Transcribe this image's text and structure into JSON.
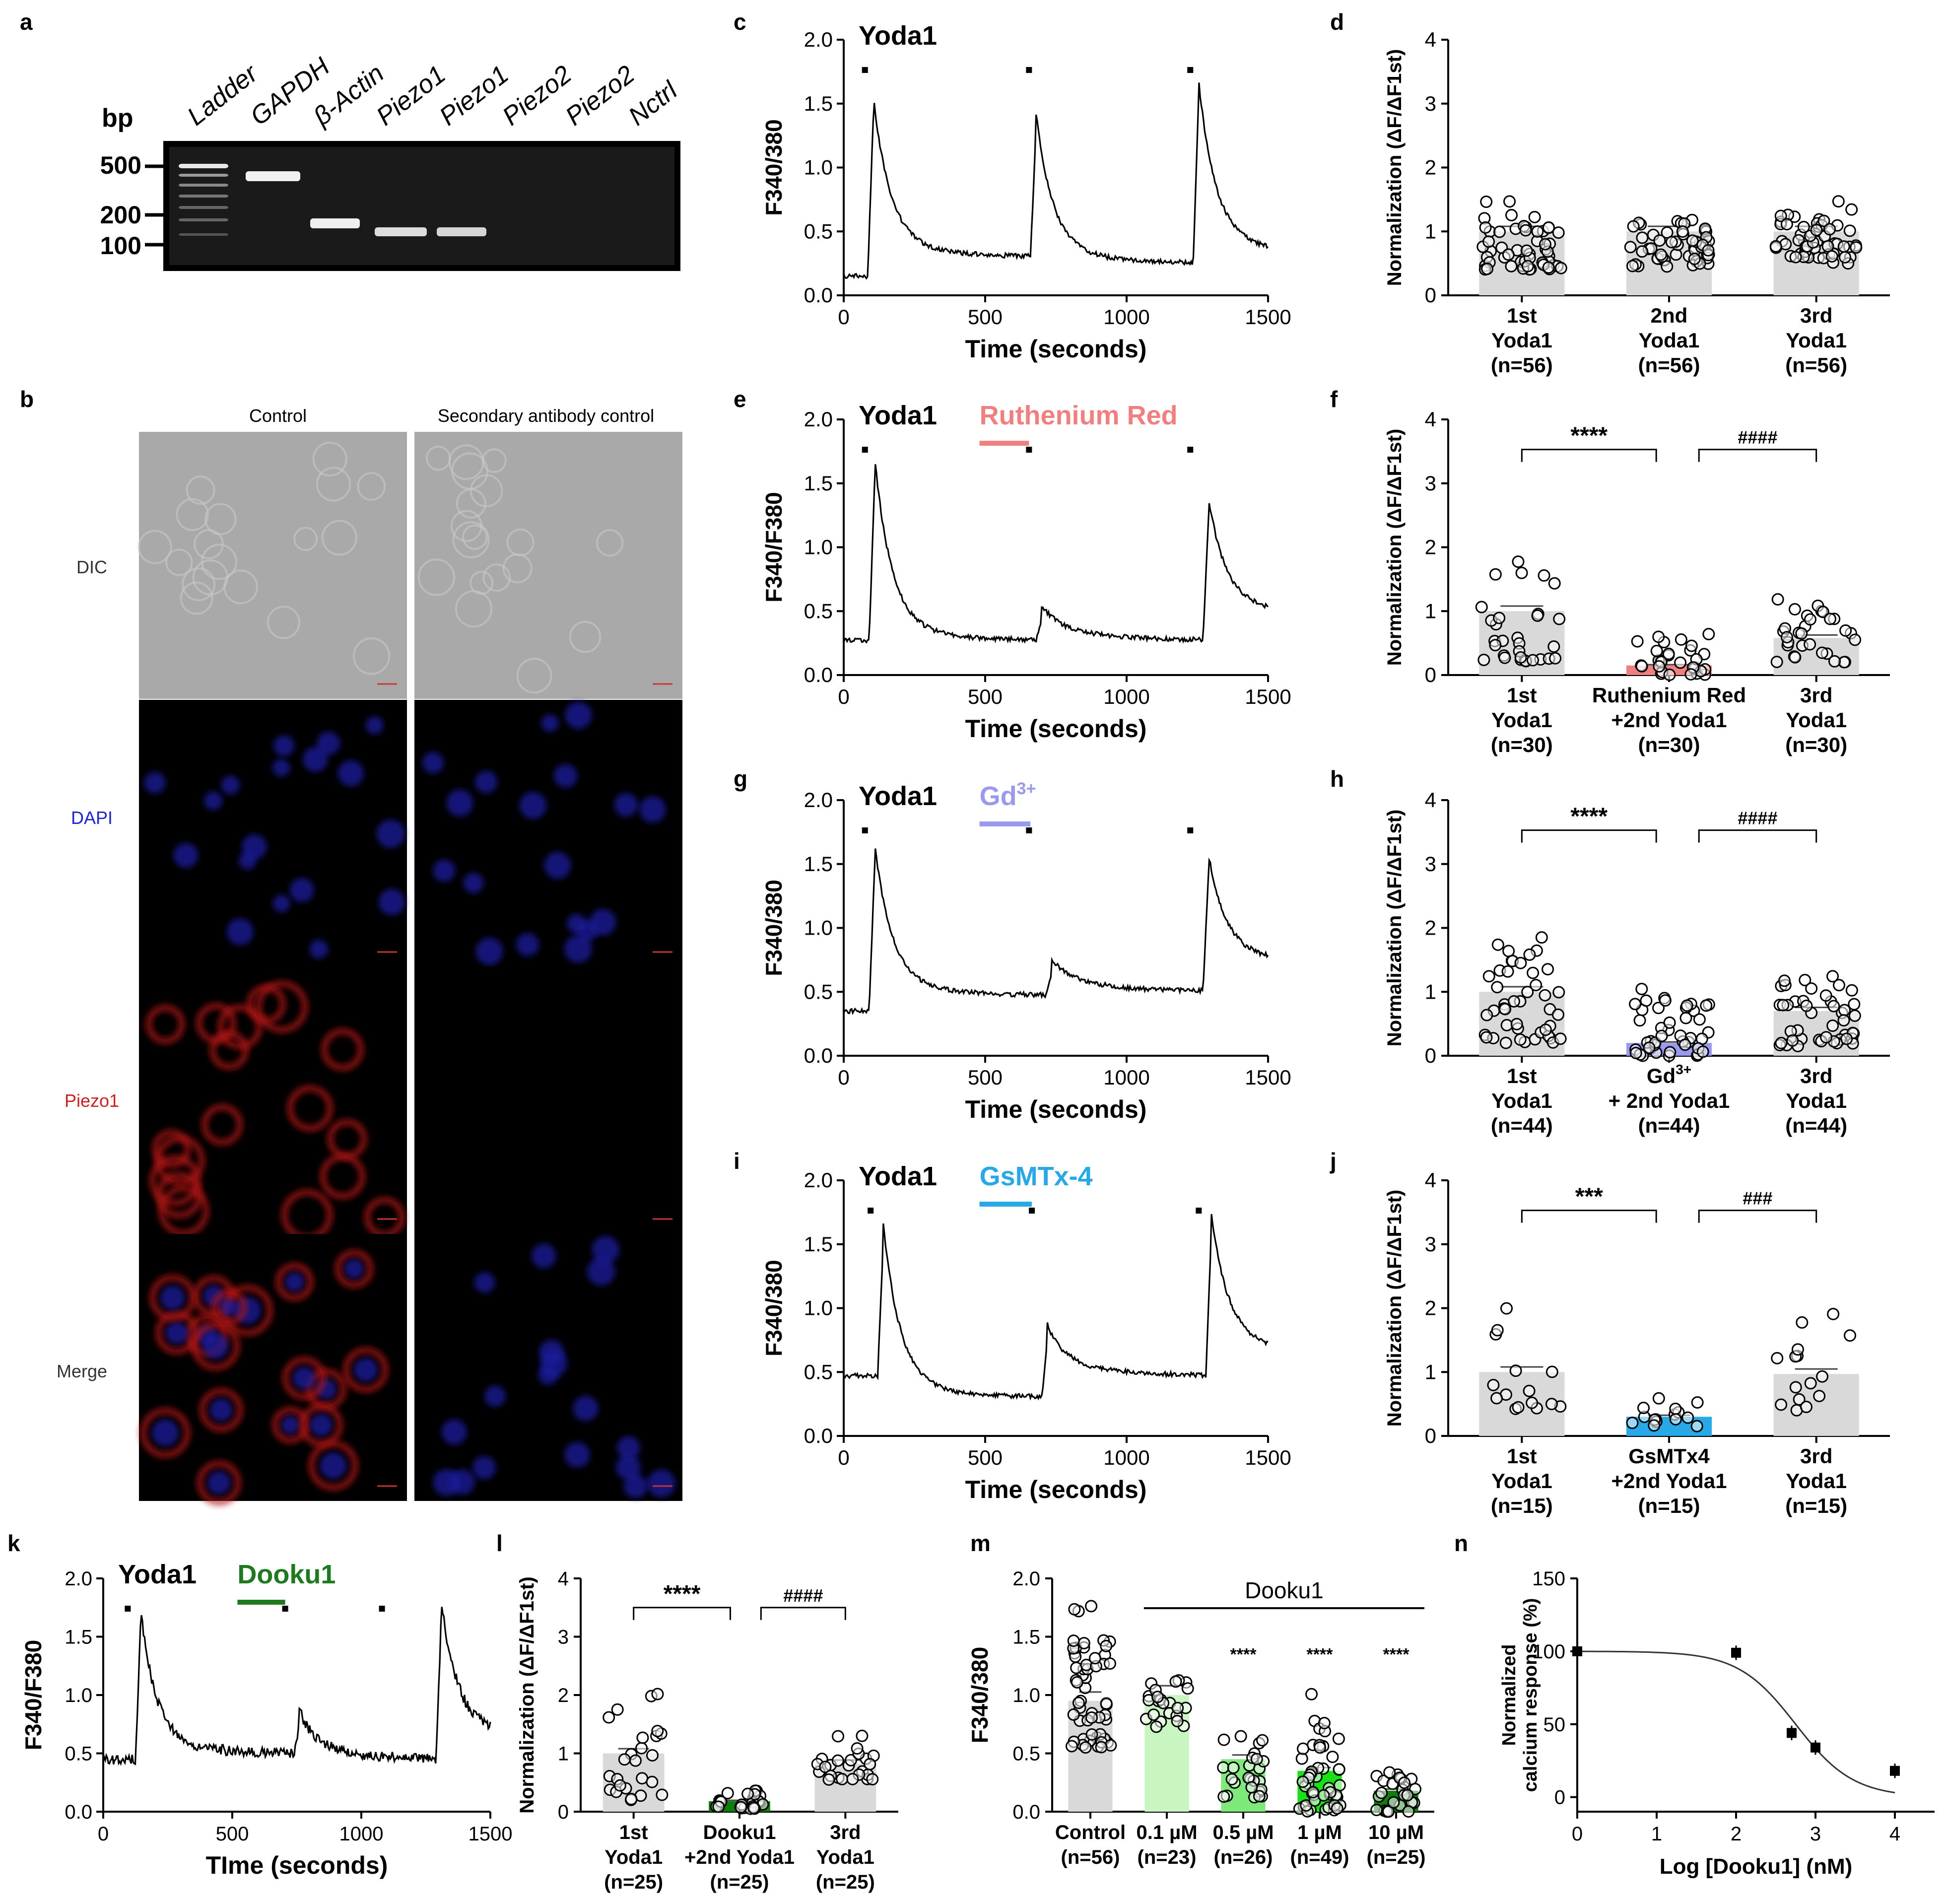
{
  "panel_letters": [
    "a",
    "b",
    "c",
    "d",
    "e",
    "f",
    "g",
    "h",
    "i",
    "j",
    "k",
    "l",
    "m",
    "n"
  ],
  "colors": {
    "ruthenium": "#f08080",
    "gd": "#9999ee",
    "gsmtx": "#29a8e8",
    "dooku": "#1f7a1f",
    "control_bar": "#d9d9d9",
    "light_green": "#c9f5c0",
    "mid_green": "#7fe87a",
    "bright_green": "#19e019",
    "dark_green": "#0e7d0e",
    "dapi": "#2222cc",
    "piezo": "#cc2020"
  },
  "gel": {
    "bp_label": "bp",
    "ladder_marks": [
      "500",
      "200",
      "100"
    ],
    "lanes": [
      "Ladder",
      "GAPDH",
      "β-Actin",
      "Piezo1",
      "Piezo1",
      "Piezo2",
      "Piezo2",
      "Nctrl"
    ]
  },
  "microscopy": {
    "columns": [
      "Control",
      "Secondary antibody control"
    ],
    "rows": [
      "DIC",
      "DAPI",
      "Piezo1",
      "Merge"
    ]
  },
  "chart_data": [
    {
      "id": "c",
      "type": "line",
      "title": "Yoda1",
      "ylabel": "F340/380",
      "xlabel": "Time (seconds)",
      "xlim": [
        0,
        1500
      ],
      "ylim": [
        0,
        2
      ],
      "xticks": [
        "0",
        "500",
        "1000",
        "1500"
      ],
      "yticks": [
        "0.0",
        "0.5",
        "1.0",
        "1.5",
        "2.0"
      ],
      "drug": null,
      "yoda_marks": [
        75,
        655,
        1225
      ],
      "baseline": 0.15,
      "peaks": [
        {
          "t": 105,
          "h": 1.43,
          "tail": 0.3
        },
        {
          "t": 680,
          "h": 1.3,
          "tail": 0.25
        },
        {
          "t": 1255,
          "h": 1.55,
          "tail": 0.33
        }
      ],
      "end": 0.3
    },
    {
      "id": "d",
      "type": "bar",
      "ylabel": "Normalization (ΔF/ΔF1st)",
      "ylim": [
        0,
        4
      ],
      "yticks": [
        "0",
        "1",
        "2",
        "3",
        "4"
      ],
      "categories": [
        [
          "1st",
          "Yoda1",
          "(n=56)"
        ],
        [
          "2nd",
          "Yoda1",
          "(n=56)"
        ],
        [
          "3rd",
          "Yoda1",
          "(n=56)"
        ]
      ],
      "values": [
        1.0,
        1.0,
        1.0
      ],
      "n": [
        56,
        56,
        56
      ],
      "spread": [
        [
          0.4,
          1.55
        ],
        [
          0.45,
          1.45
        ],
        [
          0.5,
          1.5
        ]
      ],
      "bar_colors": [
        "#d9d9d9",
        "#d9d9d9",
        "#d9d9d9"
      ],
      "sig": []
    },
    {
      "id": "e",
      "type": "line",
      "title": "Yoda1",
      "drug": "Ruthenium Red",
      "drug_color": "#f08080",
      "ylabel": "F340/F380",
      "xlabel": "Time (seconds)",
      "xlim": [
        0,
        1500
      ],
      "ylim": [
        0,
        2
      ],
      "xticks": [
        "0",
        "500",
        "1000",
        "1500"
      ],
      "yticks": [
        "0.0",
        "0.5",
        "1.0",
        "1.5",
        "2.0"
      ],
      "yoda_marks": [
        75,
        655,
        1225
      ],
      "drug_range": [
        480,
        655
      ],
      "baseline": 0.27,
      "peaks": [
        {
          "t": 110,
          "h": 1.57,
          "tail": 0.27
        },
        {
          "t": 700,
          "h": 0.42,
          "tail": 0.27
        },
        {
          "t": 1290,
          "h": 1.26,
          "tail": 0.47
        }
      ],
      "end": 0.47
    },
    {
      "id": "f",
      "type": "bar",
      "ylabel": "Normalization (ΔF/ΔF1st)",
      "ylim": [
        0,
        4
      ],
      "yticks": [
        "0",
        "1",
        "2",
        "3",
        "4"
      ],
      "categories": [
        [
          "1st",
          "Yoda1",
          "(n=30)"
        ],
        [
          "Ruthenium Red",
          "+2nd  Yoda1",
          "(n=30)"
        ],
        [
          "3rd",
          "Yoda1",
          "(n=30)"
        ]
      ],
      "values": [
        1.0,
        0.15,
        0.58
      ],
      "n": [
        30,
        30,
        30
      ],
      "spread": [
        [
          0.2,
          2.4
        ],
        [
          0.0,
          0.75
        ],
        [
          0.2,
          1.6
        ]
      ],
      "bar_colors": [
        "#d9d9d9",
        "#f08080",
        "#d9d9d9"
      ],
      "sig": [
        "****",
        "####"
      ]
    },
    {
      "id": "g",
      "type": "line",
      "title": "Yoda1",
      "drug": "Gd3+",
      "drug_color": "#9999ee",
      "ylabel": "F340/380",
      "xlabel": "Time (seconds)",
      "xlim": [
        0,
        1500
      ],
      "ylim": [
        0,
        2
      ],
      "xticks": [
        "0",
        "500",
        "1000",
        "1500"
      ],
      "yticks": [
        "0.0",
        "0.5",
        "1.0",
        "1.5",
        "2.0"
      ],
      "yoda_marks": [
        75,
        655,
        1225
      ],
      "drug_range": [
        480,
        660
      ],
      "baseline": 0.35,
      "peaks": [
        {
          "t": 110,
          "h": 1.53,
          "tail": 0.47
        },
        {
          "t": 735,
          "h": 0.64,
          "tail": 0.5
        },
        {
          "t": 1290,
          "h": 1.45,
          "tail": 0.72
        }
      ],
      "end": 0.72
    },
    {
      "id": "h",
      "type": "bar",
      "ylabel": "Normalization (ΔF/ΔF1st)",
      "ylim": [
        0,
        4
      ],
      "yticks": [
        "0",
        "1",
        "2",
        "3",
        "4"
      ],
      "categories": [
        [
          "1st",
          "Yoda1",
          "(n=44)"
        ],
        [
          "Gd3+",
          "+ 2nd Yoda1",
          "(n=44)"
        ],
        [
          "3rd",
          "Yoda1",
          "(n=44)"
        ]
      ],
      "values": [
        1.0,
        0.2,
        0.7
      ],
      "n": [
        44,
        44,
        44
      ],
      "spread": [
        [
          0.2,
          2.5
        ],
        [
          0.0,
          1.2
        ],
        [
          0.15,
          1.65
        ]
      ],
      "bar_colors": [
        "#d9d9d9",
        "#9999ee",
        "#d9d9d9"
      ],
      "sig": [
        "****",
        "####"
      ]
    },
    {
      "id": "i",
      "type": "line",
      "title": "Yoda1",
      "drug": "GsMTx-4",
      "drug_color": "#29a8e8",
      "ylabel": "F340/380",
      "xlabel": "Time (seconds)",
      "xlim": [
        0,
        1500
      ],
      "ylim": [
        0,
        2
      ],
      "xticks": [
        "0",
        "500",
        "1000",
        "1500"
      ],
      "yticks": [
        "0.0",
        "0.5",
        "1.0",
        "1.5",
        "2.0"
      ],
      "yoda_marks": [
        95,
        665,
        1255
      ],
      "drug_range": [
        480,
        665
      ],
      "baseline": 0.47,
      "peaks": [
        {
          "t": 140,
          "h": 1.53,
          "tail": 0.3
        },
        {
          "t": 720,
          "h": 0.75,
          "tail": 0.47
        },
        {
          "t": 1300,
          "h": 1.6,
          "tail": 0.65
        }
      ],
      "end": 0.65
    },
    {
      "id": "j",
      "type": "bar",
      "ylabel": "Normalization (ΔF/ΔF1st)",
      "ylim": [
        0,
        4
      ],
      "yticks": [
        "0",
        "1",
        "2",
        "3",
        "4"
      ],
      "categories": [
        [
          "1st",
          "Yoda1",
          "(n=15)"
        ],
        [
          "GsMTx4",
          "+2nd Yoda1",
          "(n=15)"
        ],
        [
          "3rd",
          "Yoda1",
          "(n=15)"
        ]
      ],
      "values": [
        1.0,
        0.3,
        0.97
      ],
      "n": [
        15,
        15,
        15
      ],
      "spread": [
        [
          0.35,
          2.8
        ],
        [
          0.15,
          0.75
        ],
        [
          0.35,
          2.9
        ]
      ],
      "bar_colors": [
        "#d9d9d9",
        "#29a8e8",
        "#d9d9d9"
      ],
      "sig": [
        "***",
        "###"
      ]
    },
    {
      "id": "k",
      "type": "line",
      "title": "Yoda1",
      "drug": "Dooku1",
      "drug_color": "#1f7a1f",
      "ylabel": "F340/F380",
      "xlabel": "TIme (seconds)",
      "xlim": [
        0,
        1500
      ],
      "ylim": [
        0,
        2
      ],
      "xticks": [
        "0",
        "500",
        "1000",
        "1500"
      ],
      "yticks": [
        "0.0",
        "0.5",
        "1.0",
        "1.5",
        "2.0"
      ],
      "yoda_marks": [
        95,
        705,
        1080
      ],
      "drug_range": [
        520,
        705
      ],
      "baseline": 0.45,
      "peaks": [
        {
          "t": 145,
          "h": 1.6,
          "tail": 0.5
        },
        {
          "t": 760,
          "h": 0.75,
          "tail": 0.45
        },
        {
          "t": 1310,
          "h": 1.7,
          "tail": 0.65
        }
      ],
      "end": 0.65
    },
    {
      "id": "l",
      "type": "bar",
      "ylabel": "Normalization (ΔF/ΔF1st)",
      "ylim": [
        0,
        4
      ],
      "yticks": [
        "0",
        "1",
        "2",
        "3",
        "4"
      ],
      "categories": [
        [
          "1st",
          "Yoda1",
          "(n=25)"
        ],
        [
          "Dooku1",
          "+2nd Yoda1",
          "(n=25)"
        ],
        [
          "3rd",
          "Yoda1",
          "(n=25)"
        ]
      ],
      "values": [
        1.0,
        0.18,
        0.82
      ],
      "n": [
        25,
        25,
        25
      ],
      "spread": [
        [
          0.2,
          3.1
        ],
        [
          0.05,
          0.5
        ],
        [
          0.55,
          1.55
        ]
      ],
      "bar_colors": [
        "#d9d9d9",
        "#0e7d0e",
        "#d9d9d9"
      ],
      "sig": [
        "****",
        "####"
      ]
    },
    {
      "id": "m",
      "type": "bar",
      "ylabel": "F340/380",
      "ylim": [
        0,
        2
      ],
      "yticks": [
        "0.0",
        "0.5",
        "1.0",
        "1.5",
        "2.0"
      ],
      "group_label": "Dooku1",
      "categories": [
        [
          "Control",
          "(n=56)"
        ],
        [
          "0.1 µM",
          "(n=23)"
        ],
        [
          "0.5 µM",
          "(n=26)"
        ],
        [
          "1 µM",
          "(n=49)"
        ],
        [
          "10 µM",
          "(n=25)"
        ]
      ],
      "values": [
        0.95,
        1.0,
        0.45,
        0.35,
        0.18
      ],
      "n": [
        56,
        23,
        26,
        49,
        25
      ],
      "spread": [
        [
          0.55,
          1.8
        ],
        [
          0.7,
          1.3
        ],
        [
          0.1,
          0.92
        ],
        [
          0.0,
          1.05
        ],
        [
          0.0,
          0.5
        ]
      ],
      "bar_colors": [
        "#d9d9d9",
        "#c9f5c0",
        "#7fe87a",
        "#19e019",
        "#0e7d0e"
      ],
      "marks": [
        "",
        "",
        "****",
        "****",
        "****"
      ]
    },
    {
      "id": "n",
      "type": "scatter",
      "ylabel": "Normalized calcium response (%)",
      "xlabel": "Log [Dooku1] (nM)",
      "xlim": [
        0,
        4.5
      ],
      "ylim": [
        -10,
        150
      ],
      "xticks": [
        "0",
        "1",
        "2",
        "3",
        "4"
      ],
      "yticks": [
        "0",
        "50",
        "100",
        "150"
      ],
      "x": [
        0,
        2,
        2.7,
        3,
        4
      ],
      "y": [
        100,
        99,
        44,
        34,
        18
      ],
      "fit_ic50_log": 2.75,
      "fit_hill": 1.2
    }
  ]
}
